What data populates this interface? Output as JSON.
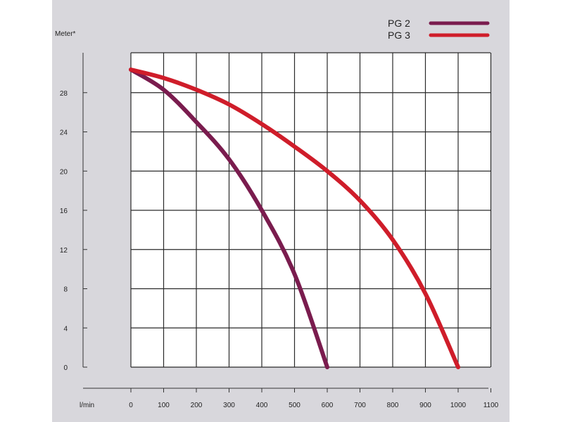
{
  "chart_data": {
    "type": "line",
    "title": "",
    "xlabel": "l/min",
    "ylabel": "Meter*",
    "xlim": [
      0,
      1100
    ],
    "ylim": [
      0,
      30.5
    ],
    "x_ticks": [
      "0",
      "100",
      "200",
      "300",
      "400",
      "500",
      "600",
      "700",
      "800",
      "900",
      "1000",
      "1100"
    ],
    "y_ticks": [
      "0",
      "4",
      "8",
      "12",
      "16",
      "20",
      "24",
      "28"
    ],
    "x_tick_values": [
      0,
      100,
      200,
      300,
      400,
      500,
      600,
      700,
      800,
      900,
      1000,
      1100
    ],
    "y_tick_values": [
      0,
      4,
      8,
      12,
      16,
      20,
      24,
      28
    ],
    "grid": true,
    "legend_position": "top-right",
    "series": [
      {
        "name": "PG 2",
        "color": "#7a1c4e",
        "x": [
          0,
          100,
          200,
          300,
          400,
          500,
          600
        ],
        "y": [
          30.5,
          28.3,
          25.0,
          21.2,
          16.0,
          9.5,
          0
        ]
      },
      {
        "name": "PG 3",
        "color": "#cf1d2a",
        "x": [
          0,
          100,
          200,
          300,
          400,
          500,
          600,
          700,
          800,
          900,
          1000
        ],
        "y": [
          30.5,
          29.5,
          28.3,
          26.8,
          24.8,
          22.5,
          20.0,
          17.0,
          13.0,
          7.5,
          0
        ]
      }
    ]
  }
}
